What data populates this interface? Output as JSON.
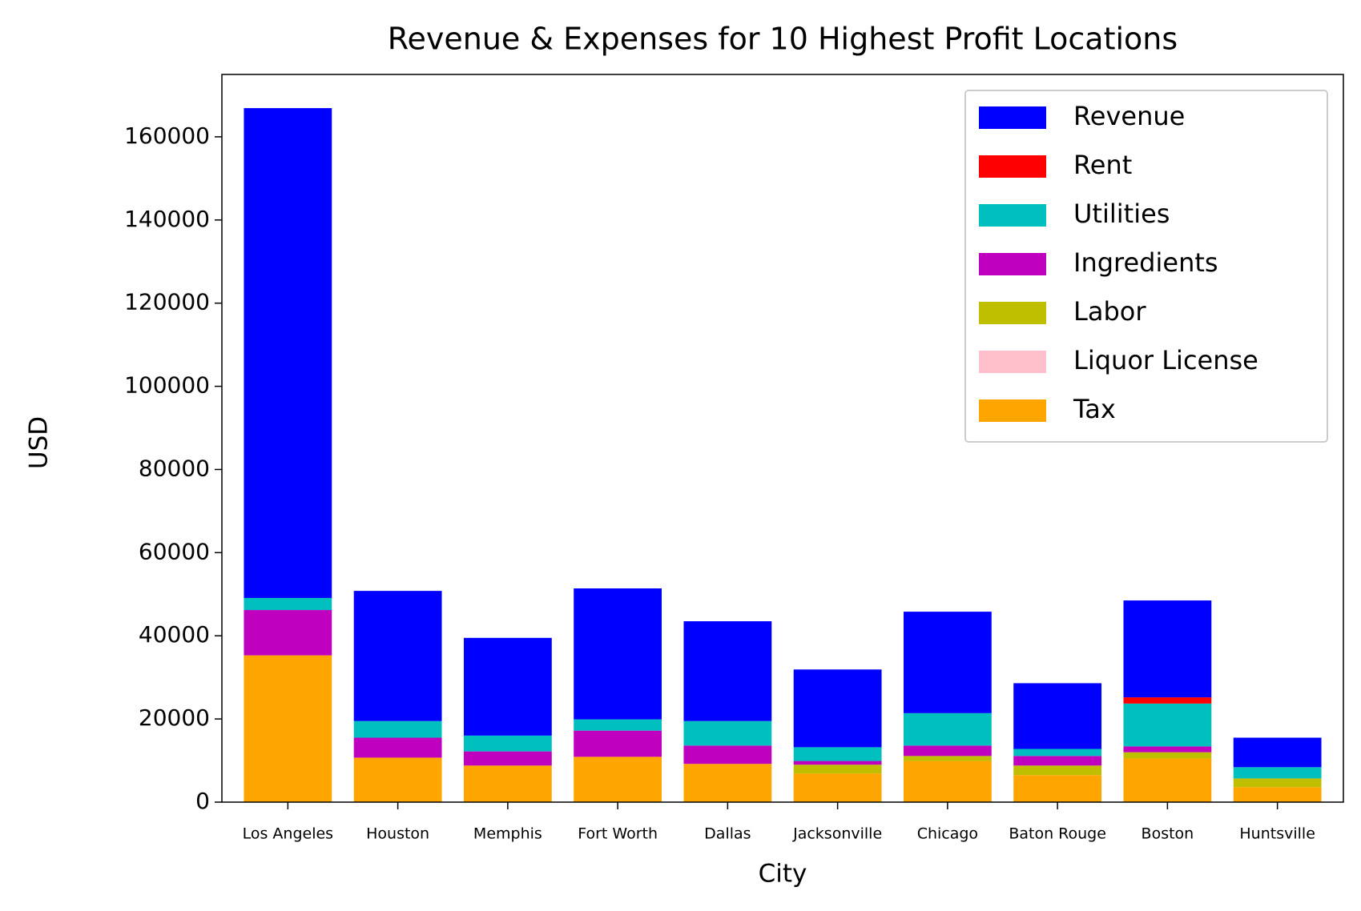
{
  "chart_data": {
    "type": "stacked_bar",
    "title": "Revenue & Expenses for 10 Highest Profit Locations",
    "x_label": "City",
    "y_label": "USD",
    "categories": [
      "Los Angeles",
      "Houston",
      "Memphis",
      "Fort Worth",
      "Dallas",
      "Jacksonville",
      "Chicago",
      "Baton Rouge",
      "Boston",
      "Huntsville"
    ],
    "series": [
      {
        "name": "Revenue",
        "color": "#0000ff",
        "values": [
          117800,
          31300,
          23500,
          31500,
          24000,
          18700,
          24400,
          15800,
          23300,
          7100
        ]
      },
      {
        "name": "Rent",
        "color": "#ff0000",
        "values": [
          0,
          0,
          0,
          0,
          0,
          0,
          0,
          0,
          1500,
          0
        ]
      },
      {
        "name": "Utilities",
        "color": "#00bfbf",
        "values": [
          2900,
          4000,
          3800,
          2700,
          5900,
          3300,
          7800,
          1700,
          10300,
          2700
        ]
      },
      {
        "name": "Ingredients",
        "color": "#bf00bf",
        "values": [
          10900,
          4800,
          3400,
          6300,
          4400,
          900,
          2500,
          2300,
          1400,
          0
        ]
      },
      {
        "name": "Labor",
        "color": "#bfbf00",
        "values": [
          0,
          0,
          0,
          0,
          0,
          2100,
          1200,
          2300,
          1500,
          2100
        ]
      },
      {
        "name": "Liquor License",
        "color": "#ffc0cb",
        "values": [
          0,
          0,
          0,
          0,
          0,
          0,
          0,
          0,
          0,
          0
        ]
      },
      {
        "name": "Tax",
        "color": "#ffa500",
        "values": [
          35300,
          10700,
          8800,
          10900,
          9200,
          6900,
          9900,
          6500,
          10500,
          3600
        ]
      }
    ],
    "ylim": [
      0,
      175000
    ],
    "yticks": [
      0,
      20000,
      40000,
      60000,
      80000,
      100000,
      120000,
      140000,
      160000
    ],
    "legend": "upper right"
  }
}
